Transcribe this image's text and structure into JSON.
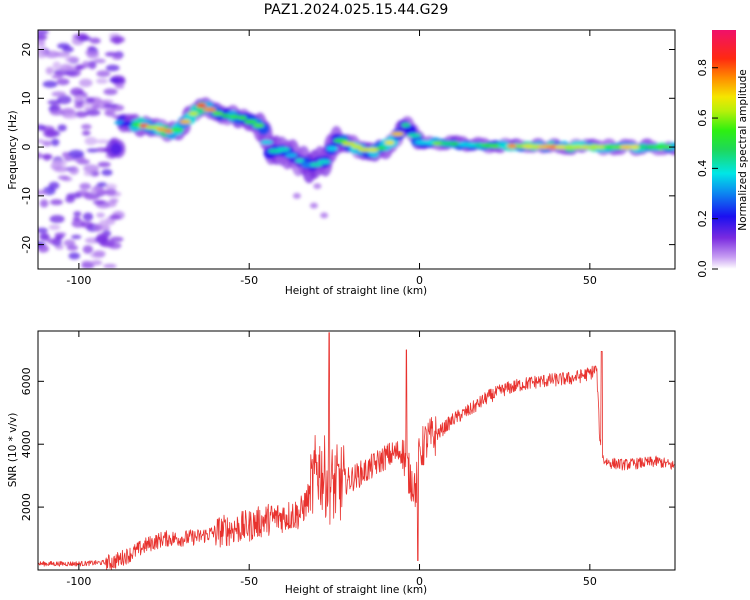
{
  "title": "PAZ1.2024.025.15.44.G29",
  "chart_data": [
    {
      "type": "heatmap",
      "xlabel": "Height of straight line (km)",
      "ylabel": "Frequency (Hz)",
      "xlim": [
        -112,
        75
      ],
      "ylim": [
        -25,
        24
      ],
      "xticks": [
        -100,
        -50,
        0,
        50
      ],
      "yticks": [
        -20,
        -10,
        0,
        10,
        20
      ],
      "colorbar": {
        "label": "Normalized spectral amplitude",
        "range": [
          0,
          0.95
        ],
        "ticks": [
          "0.0",
          "0.2",
          "0.4",
          "0.6",
          "0.8"
        ],
        "colormap": "rainbow (purple-blue-cyan-green-yellow-orange-red-magenta)"
      },
      "ridge": [
        {
          "x": -88,
          "y": 5
        },
        {
          "x": -82,
          "y": 4.5
        },
        {
          "x": -78,
          "y": 4
        },
        {
          "x": -72,
          "y": 3
        },
        {
          "x": -64,
          "y": 8.5
        },
        {
          "x": -58,
          "y": 6.5
        },
        {
          "x": -52,
          "y": 6
        },
        {
          "x": -46,
          "y": 4
        },
        {
          "x": -44,
          "y": -1
        },
        {
          "x": -40,
          "y": -0.5
        },
        {
          "x": -36,
          "y": -2.5
        },
        {
          "x": -32,
          "y": -4
        },
        {
          "x": -28,
          "y": -3
        },
        {
          "x": -24,
          "y": 1.5
        },
        {
          "x": -20,
          "y": 0.5
        },
        {
          "x": -15,
          "y": -0.8
        },
        {
          "x": -10,
          "y": 0
        },
        {
          "x": -4,
          "y": 4.5
        },
        {
          "x": 0,
          "y": 1
        },
        {
          "x": 20,
          "y": 0.3
        },
        {
          "x": 40,
          "y": 0
        },
        {
          "x": 60,
          "y": 0
        },
        {
          "x": 75,
          "y": 0
        }
      ],
      "grid": false
    },
    {
      "type": "line",
      "xlabel": "Height of straight line (km)",
      "ylabel": "SNR (10 * v/v)",
      "xlim": [
        -112,
        75
      ],
      "ylim": [
        0,
        7600
      ],
      "xticks": [
        -100,
        -50,
        0,
        50
      ],
      "yticks": [
        2000,
        4000,
        6000
      ],
      "color": "#e8322e",
      "series": [
        {
          "x": [
            -112,
            -100,
            -90,
            -85,
            -80,
            -75,
            -70,
            -65,
            -60,
            -55,
            -50,
            -45,
            -40,
            -35,
            -32,
            -30,
            -28,
            -26,
            -24,
            -20,
            -15,
            -10,
            -5,
            -3,
            -1,
            0,
            2,
            5,
            10,
            15,
            20,
            25,
            30,
            35,
            40,
            45,
            50,
            52,
            53,
            54,
            56,
            60,
            65,
            70,
            75
          ],
          "values": [
            200,
            200,
            250,
            500,
            800,
            1000,
            1000,
            1050,
            1200,
            1300,
            1400,
            1600,
            1700,
            1800,
            2400,
            3300,
            3000,
            2700,
            2700,
            2900,
            3200,
            3600,
            3800,
            3000,
            2600,
            3700,
            4100,
            4300,
            4800,
            5100,
            5500,
            5750,
            5900,
            6000,
            6050,
            6100,
            6250,
            6400,
            4000,
            3500,
            3400,
            3350,
            3400,
            3450,
            3300
          ]
        }
      ],
      "spikes": [
        {
          "x": -26.5,
          "y": 7550
        },
        {
          "x": -3.8,
          "y": 7000
        },
        {
          "x": -0.5,
          "y": 300
        },
        {
          "x": 53.5,
          "y": 6950
        }
      ],
      "grid": false
    }
  ]
}
